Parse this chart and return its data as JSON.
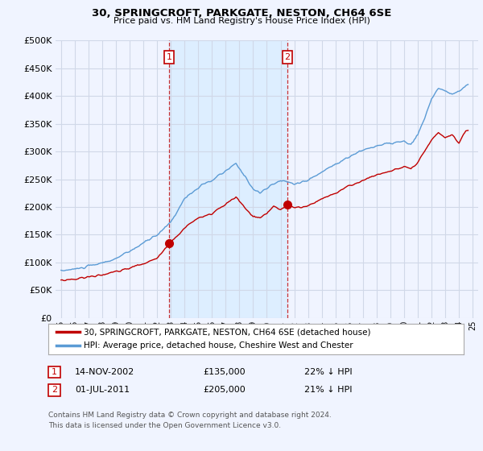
{
  "title": "30, SPRINGCROFT, PARKGATE, NESTON, CH64 6SE",
  "subtitle": "Price paid vs. HM Land Registry's House Price Index (HPI)",
  "legend_entry1": "30, SPRINGCROFT, PARKGATE, NESTON, CH64 6SE (detached house)",
  "legend_entry2": "HPI: Average price, detached house, Cheshire West and Chester",
  "transaction1_label": "1",
  "transaction1_date": "14-NOV-2002",
  "transaction1_price": "£135,000",
  "transaction1_hpi": "22% ↓ HPI",
  "transaction2_label": "2",
  "transaction2_date": "01-JUL-2011",
  "transaction2_price": "£205,000",
  "transaction2_hpi": "21% ↓ HPI",
  "footnote1": "Contains HM Land Registry data © Crown copyright and database right 2024.",
  "footnote2": "This data is licensed under the Open Government Licence v3.0.",
  "hpi_color": "#5b9bd5",
  "price_color": "#c00000",
  "vline_color": "#c00000",
  "shade_color": "#ddeeff",
  "background_color": "#f0f4ff",
  "grid_color": "#d0d8e8",
  "ylim_min": 0,
  "ylim_max": 500000,
  "yticks": [
    0,
    50000,
    100000,
    150000,
    200000,
    250000,
    300000,
    350000,
    400000,
    450000,
    500000
  ],
  "vline1_x": 2002.88,
  "vline2_x": 2011.5,
  "marker1_x": 2002.88,
  "marker1_y": 135000,
  "marker2_x": 2011.5,
  "marker2_y": 205000,
  "xlim_min": 1994.6,
  "xlim_max": 2025.4
}
